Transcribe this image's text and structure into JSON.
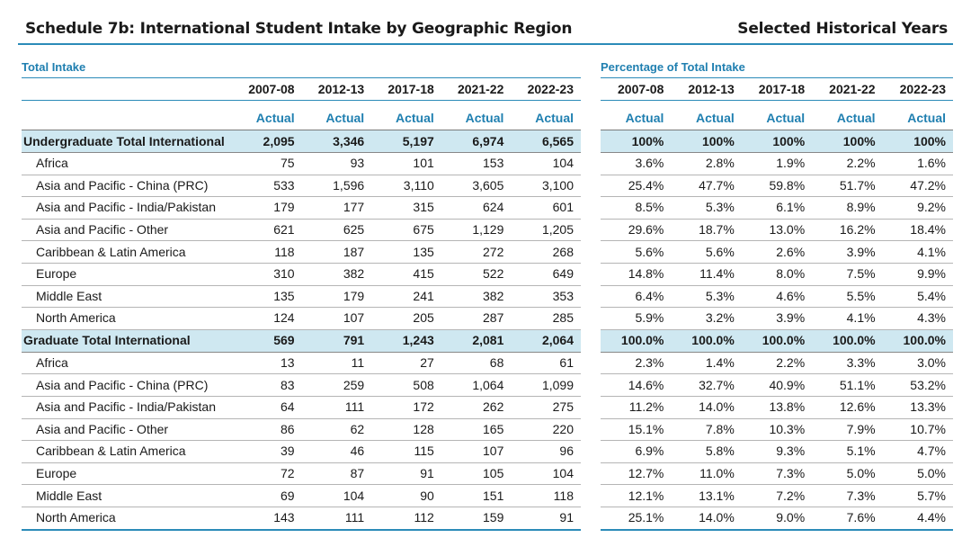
{
  "header": {
    "title": "Schedule 7b: International Student Intake by Geographic Region",
    "subtitle": "Selected Historical Years"
  },
  "left": {
    "section_title": "Total Intake",
    "years": [
      "2007-08",
      "2012-13",
      "2017-18",
      "2021-22",
      "2022-23"
    ],
    "actual_label": "Actual",
    "rows": [
      {
        "label": "Undergraduate Total International",
        "values": [
          "2,095",
          "3,346",
          "5,197",
          "6,974",
          "6,565"
        ],
        "total": true
      },
      {
        "label": "Africa",
        "values": [
          "75",
          "93",
          "101",
          "153",
          "104"
        ]
      },
      {
        "label": "Asia and Pacific - China (PRC)",
        "values": [
          "533",
          "1,596",
          "3,110",
          "3,605",
          "3,100"
        ]
      },
      {
        "label": "Asia and Pacific - India/Pakistan",
        "values": [
          "179",
          "177",
          "315",
          "624",
          "601"
        ]
      },
      {
        "label": "Asia and Pacific - Other",
        "values": [
          "621",
          "625",
          "675",
          "1,129",
          "1,205"
        ]
      },
      {
        "label": "Caribbean & Latin America",
        "values": [
          "118",
          "187",
          "135",
          "272",
          "268"
        ]
      },
      {
        "label": "Europe",
        "values": [
          "310",
          "382",
          "415",
          "522",
          "649"
        ]
      },
      {
        "label": "Middle East",
        "values": [
          "135",
          "179",
          "241",
          "382",
          "353"
        ]
      },
      {
        "label": "North America",
        "values": [
          "124",
          "107",
          "205",
          "287",
          "285"
        ]
      },
      {
        "label": "Graduate Total International",
        "values": [
          "569",
          "791",
          "1,243",
          "2,081",
          "2,064"
        ],
        "total": true
      },
      {
        "label": "Africa",
        "values": [
          "13",
          "11",
          "27",
          "68",
          "61"
        ]
      },
      {
        "label": "Asia and Pacific - China (PRC)",
        "values": [
          "83",
          "259",
          "508",
          "1,064",
          "1,099"
        ]
      },
      {
        "label": "Asia and Pacific - India/Pakistan",
        "values": [
          "64",
          "111",
          "172",
          "262",
          "275"
        ]
      },
      {
        "label": "Asia and Pacific - Other",
        "values": [
          "86",
          "62",
          "128",
          "165",
          "220"
        ]
      },
      {
        "label": "Caribbean & Latin America",
        "values": [
          "39",
          "46",
          "115",
          "107",
          "96"
        ]
      },
      {
        "label": "Europe",
        "values": [
          "72",
          "87",
          "91",
          "105",
          "104"
        ]
      },
      {
        "label": "Middle East",
        "values": [
          "69",
          "104",
          "90",
          "151",
          "118"
        ]
      },
      {
        "label": "North America",
        "values": [
          "143",
          "111",
          "112",
          "159",
          "91"
        ]
      }
    ]
  },
  "right": {
    "section_title": "Percentage of Total Intake",
    "years": [
      "2007-08",
      "2012-13",
      "2017-18",
      "2021-22",
      "2022-23"
    ],
    "actual_label": "Actual",
    "rows": [
      {
        "values": [
          "100%",
          "100%",
          "100%",
          "100%",
          "100%"
        ],
        "total": true
      },
      {
        "values": [
          "3.6%",
          "2.8%",
          "1.9%",
          "2.2%",
          "1.6%"
        ]
      },
      {
        "values": [
          "25.4%",
          "47.7%",
          "59.8%",
          "51.7%",
          "47.2%"
        ]
      },
      {
        "values": [
          "8.5%",
          "5.3%",
          "6.1%",
          "8.9%",
          "9.2%"
        ]
      },
      {
        "values": [
          "29.6%",
          "18.7%",
          "13.0%",
          "16.2%",
          "18.4%"
        ]
      },
      {
        "values": [
          "5.6%",
          "5.6%",
          "2.6%",
          "3.9%",
          "4.1%"
        ]
      },
      {
        "values": [
          "14.8%",
          "11.4%",
          "8.0%",
          "7.5%",
          "9.9%"
        ]
      },
      {
        "values": [
          "6.4%",
          "5.3%",
          "4.6%",
          "5.5%",
          "5.4%"
        ]
      },
      {
        "values": [
          "5.9%",
          "3.2%",
          "3.9%",
          "4.1%",
          "4.3%"
        ]
      },
      {
        "values": [
          "100.0%",
          "100.0%",
          "100.0%",
          "100.0%",
          "100.0%"
        ],
        "total": true
      },
      {
        "values": [
          "2.3%",
          "1.4%",
          "2.2%",
          "3.3%",
          "3.0%"
        ]
      },
      {
        "values": [
          "14.6%",
          "32.7%",
          "40.9%",
          "51.1%",
          "53.2%"
        ]
      },
      {
        "values": [
          "11.2%",
          "14.0%",
          "13.8%",
          "12.6%",
          "13.3%"
        ]
      },
      {
        "values": [
          "15.1%",
          "7.8%",
          "10.3%",
          "7.9%",
          "10.7%"
        ]
      },
      {
        "values": [
          "6.9%",
          "5.8%",
          "9.3%",
          "5.1%",
          "4.7%"
        ]
      },
      {
        "values": [
          "12.7%",
          "11.0%",
          "7.3%",
          "5.0%",
          "5.0%"
        ]
      },
      {
        "values": [
          "12.1%",
          "13.1%",
          "7.2%",
          "7.3%",
          "5.7%"
        ]
      },
      {
        "values": [
          "25.1%",
          "14.0%",
          "9.0%",
          "7.6%",
          "4.4%"
        ]
      }
    ]
  }
}
